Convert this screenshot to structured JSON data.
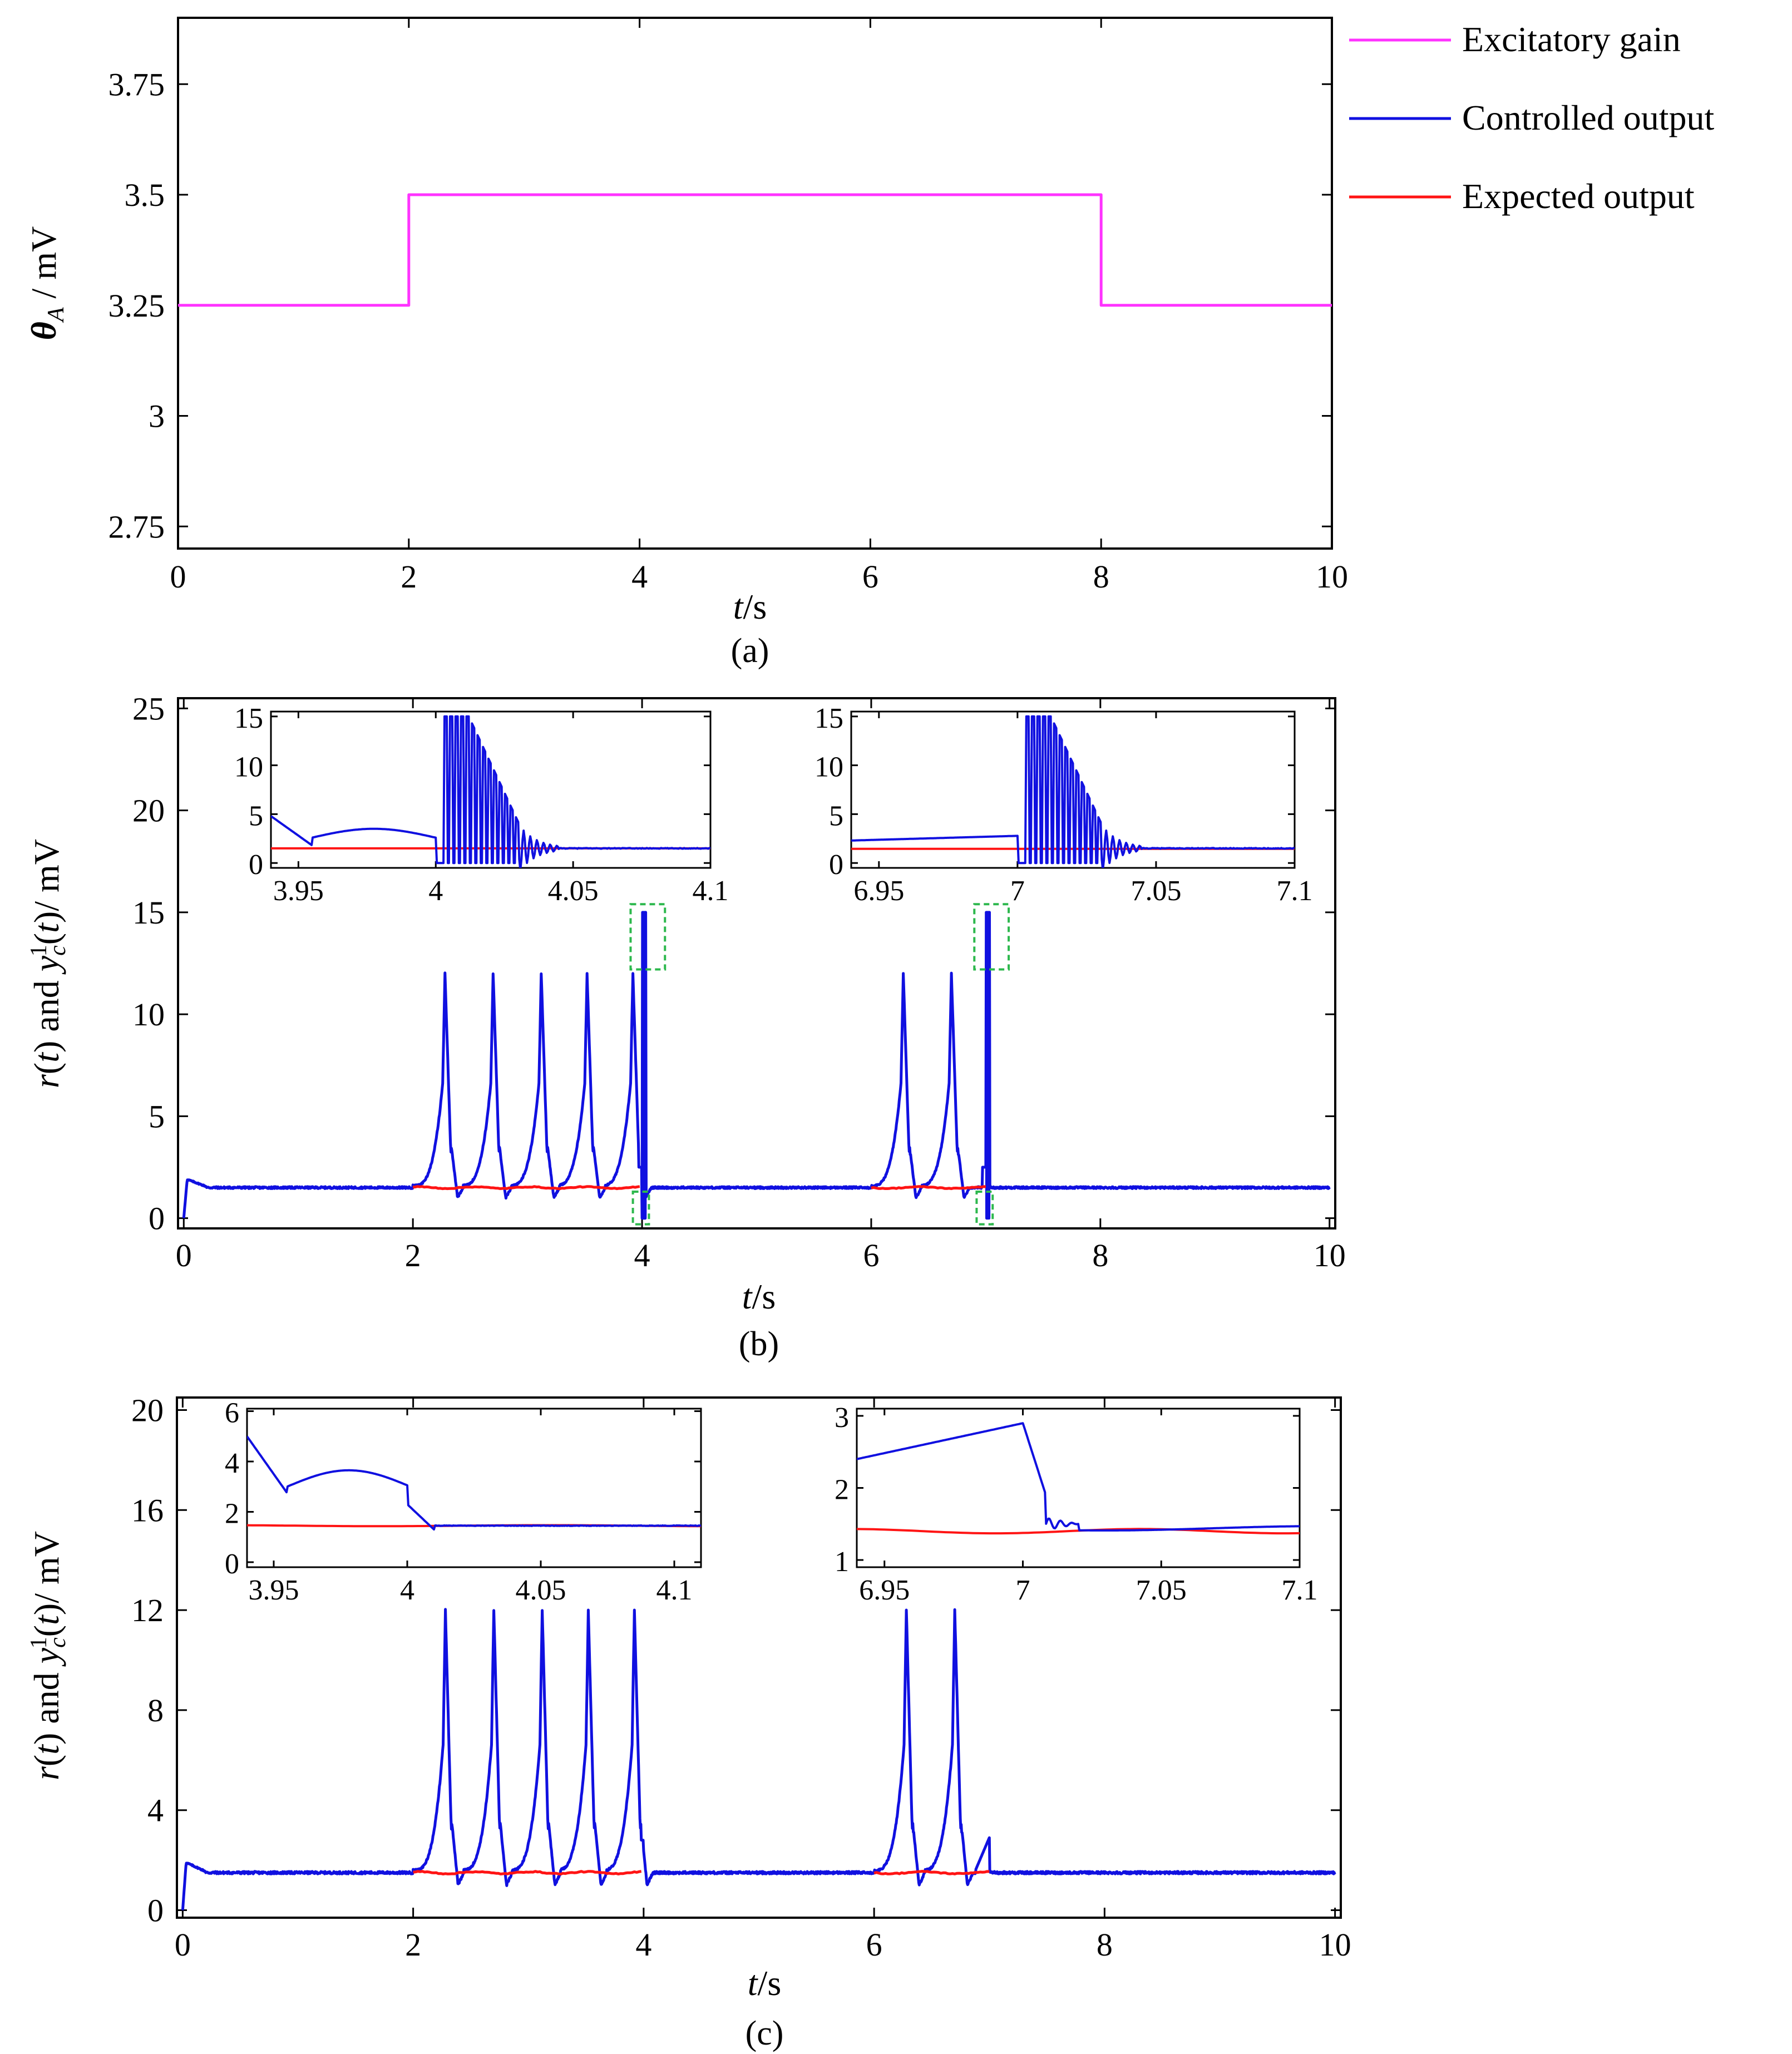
{
  "legend": [
    {
      "label": "Excitatory gain",
      "color": "#ff33ff"
    },
    {
      "label": "Controlled output",
      "color": "#1010e0"
    },
    {
      "label": "Expected output",
      "color": "#ff1414"
    }
  ],
  "colors": {
    "excitatory": "#ff33ff",
    "controlled": "#1010e0",
    "expected": "#ff1414",
    "zoom_box": "#2db84d"
  },
  "captions": {
    "a": "(a)",
    "b": "(b)",
    "c": "(c)"
  },
  "chart_data": [
    {
      "id": "a",
      "type": "line",
      "xlabel_italic": "t",
      "xlabel_unit": "/s",
      "ylabel_symbol": "θ",
      "ylabel_sub": "A",
      "ylabel_unit": " / mV",
      "xlim": [
        0,
        10
      ],
      "ylim": [
        2.7,
        3.9
      ],
      "xticks": [
        0,
        2,
        4,
        6,
        8,
        10
      ],
      "xtick_labels": [
        "0",
        "2",
        "4",
        "6",
        "8",
        "10"
      ],
      "yticks": [
        2.75,
        3,
        3.25,
        3.5,
        3.75
      ],
      "ytick_labels": [
        "2.75",
        "3",
        "3.25",
        "3.5",
        "3.75"
      ],
      "series": [
        {
          "name": "Excitatory gain",
          "x": [
            0,
            2,
            2,
            8,
            8,
            10
          ],
          "y": [
            3.25,
            3.25,
            3.5,
            3.5,
            3.25,
            3.25
          ]
        }
      ]
    },
    {
      "id": "b",
      "type": "line",
      "xlabel_italic": "t",
      "xlabel_unit": "/s",
      "ylabel_text": "r(t) and y_c^1(t) / mV",
      "xlim": [
        -0.05,
        10.05
      ],
      "ylim": [
        -0.5,
        25.5
      ],
      "xticks": [
        0,
        2,
        4,
        6,
        8,
        10
      ],
      "xtick_labels": [
        "0",
        "2",
        "4",
        "6",
        "8",
        "10"
      ],
      "yticks": [
        0,
        5,
        10,
        15,
        20,
        25
      ],
      "ytick_labels": [
        "0",
        "5",
        "10",
        "15",
        "20",
        "25"
      ],
      "baseline": 1.5,
      "spike_times": [
        2.28,
        2.7,
        3.12,
        3.52,
        3.92,
        6.28,
        6.7
      ],
      "spike_peak": 12,
      "burst_times": [
        4.0,
        7.0
      ],
      "burst_peak": 15,
      "zoom_boxes": [
        {
          "x": [
            3.9,
            4.2
          ],
          "y": [
            12.2,
            15.4
          ]
        },
        {
          "x": [
            3.92,
            4.06
          ],
          "y": [
            -0.3,
            1.3
          ]
        },
        {
          "x": [
            6.9,
            7.2
          ],
          "y": [
            12.2,
            15.4
          ]
        },
        {
          "x": [
            6.92,
            7.06
          ],
          "y": [
            -0.3,
            1.3
          ]
        }
      ],
      "insets": [
        {
          "xlim": [
            3.94,
            4.1
          ],
          "ylim": [
            -0.5,
            15.5
          ],
          "xticks": [
            3.95,
            4,
            4.05,
            4.1
          ],
          "xtick_labels": [
            "3.95",
            "4",
            "4.05",
            "4.1"
          ],
          "yticks": [
            0,
            5,
            10,
            15
          ],
          "ytick_labels": [
            "0",
            "5",
            "10",
            "15"
          ]
        },
        {
          "xlim": [
            6.94,
            7.1
          ],
          "ylim": [
            -0.5,
            15.5
          ],
          "xticks": [
            6.95,
            7,
            7.05,
            7.1
          ],
          "xtick_labels": [
            "6.95",
            "7",
            "7.05",
            "7.1"
          ],
          "yticks": [
            0,
            5,
            10,
            15
          ],
          "ytick_labels": [
            "0",
            "5",
            "10",
            "15"
          ]
        }
      ]
    },
    {
      "id": "c",
      "type": "line",
      "xlabel_italic": "t",
      "xlabel_unit": "/s",
      "ylabel_text": "r(t) and y_c^1(t) / mV",
      "xlim": [
        -0.05,
        10.05
      ],
      "ylim": [
        -0.3,
        20.5
      ],
      "xticks": [
        0,
        2,
        4,
        6,
        8,
        10
      ],
      "xtick_labels": [
        "0",
        "2",
        "4",
        "6",
        "8",
        "10"
      ],
      "yticks": [
        0,
        4,
        8,
        12,
        16,
        20
      ],
      "ytick_labels": [
        "0",
        "4",
        "8",
        "12",
        "16",
        "20"
      ],
      "baseline": 1.5,
      "spike_times": [
        2.28,
        2.7,
        3.12,
        3.52,
        3.92,
        6.28,
        6.7
      ],
      "spike_peak": 12,
      "insets": [
        {
          "xlim": [
            3.94,
            4.11
          ],
          "ylim": [
            -0.2,
            6.1
          ],
          "xticks": [
            3.95,
            4,
            4.05,
            4.1
          ],
          "xtick_labels": [
            "3.95",
            "4",
            "4.05",
            "4.1"
          ],
          "yticks": [
            0,
            2,
            4,
            6
          ],
          "ytick_labels": [
            "0",
            "2",
            "4",
            "6"
          ]
        },
        {
          "xlim": [
            6.94,
            7.1
          ],
          "ylim": [
            0.9,
            3.1
          ],
          "xticks": [
            6.95,
            7,
            7.05,
            7.1
          ],
          "xtick_labels": [
            "6.95",
            "7",
            "7.05",
            "7.1"
          ],
          "yticks": [
            1,
            2,
            3
          ],
          "ytick_labels": [
            "1",
            "2",
            "3"
          ]
        }
      ]
    }
  ]
}
